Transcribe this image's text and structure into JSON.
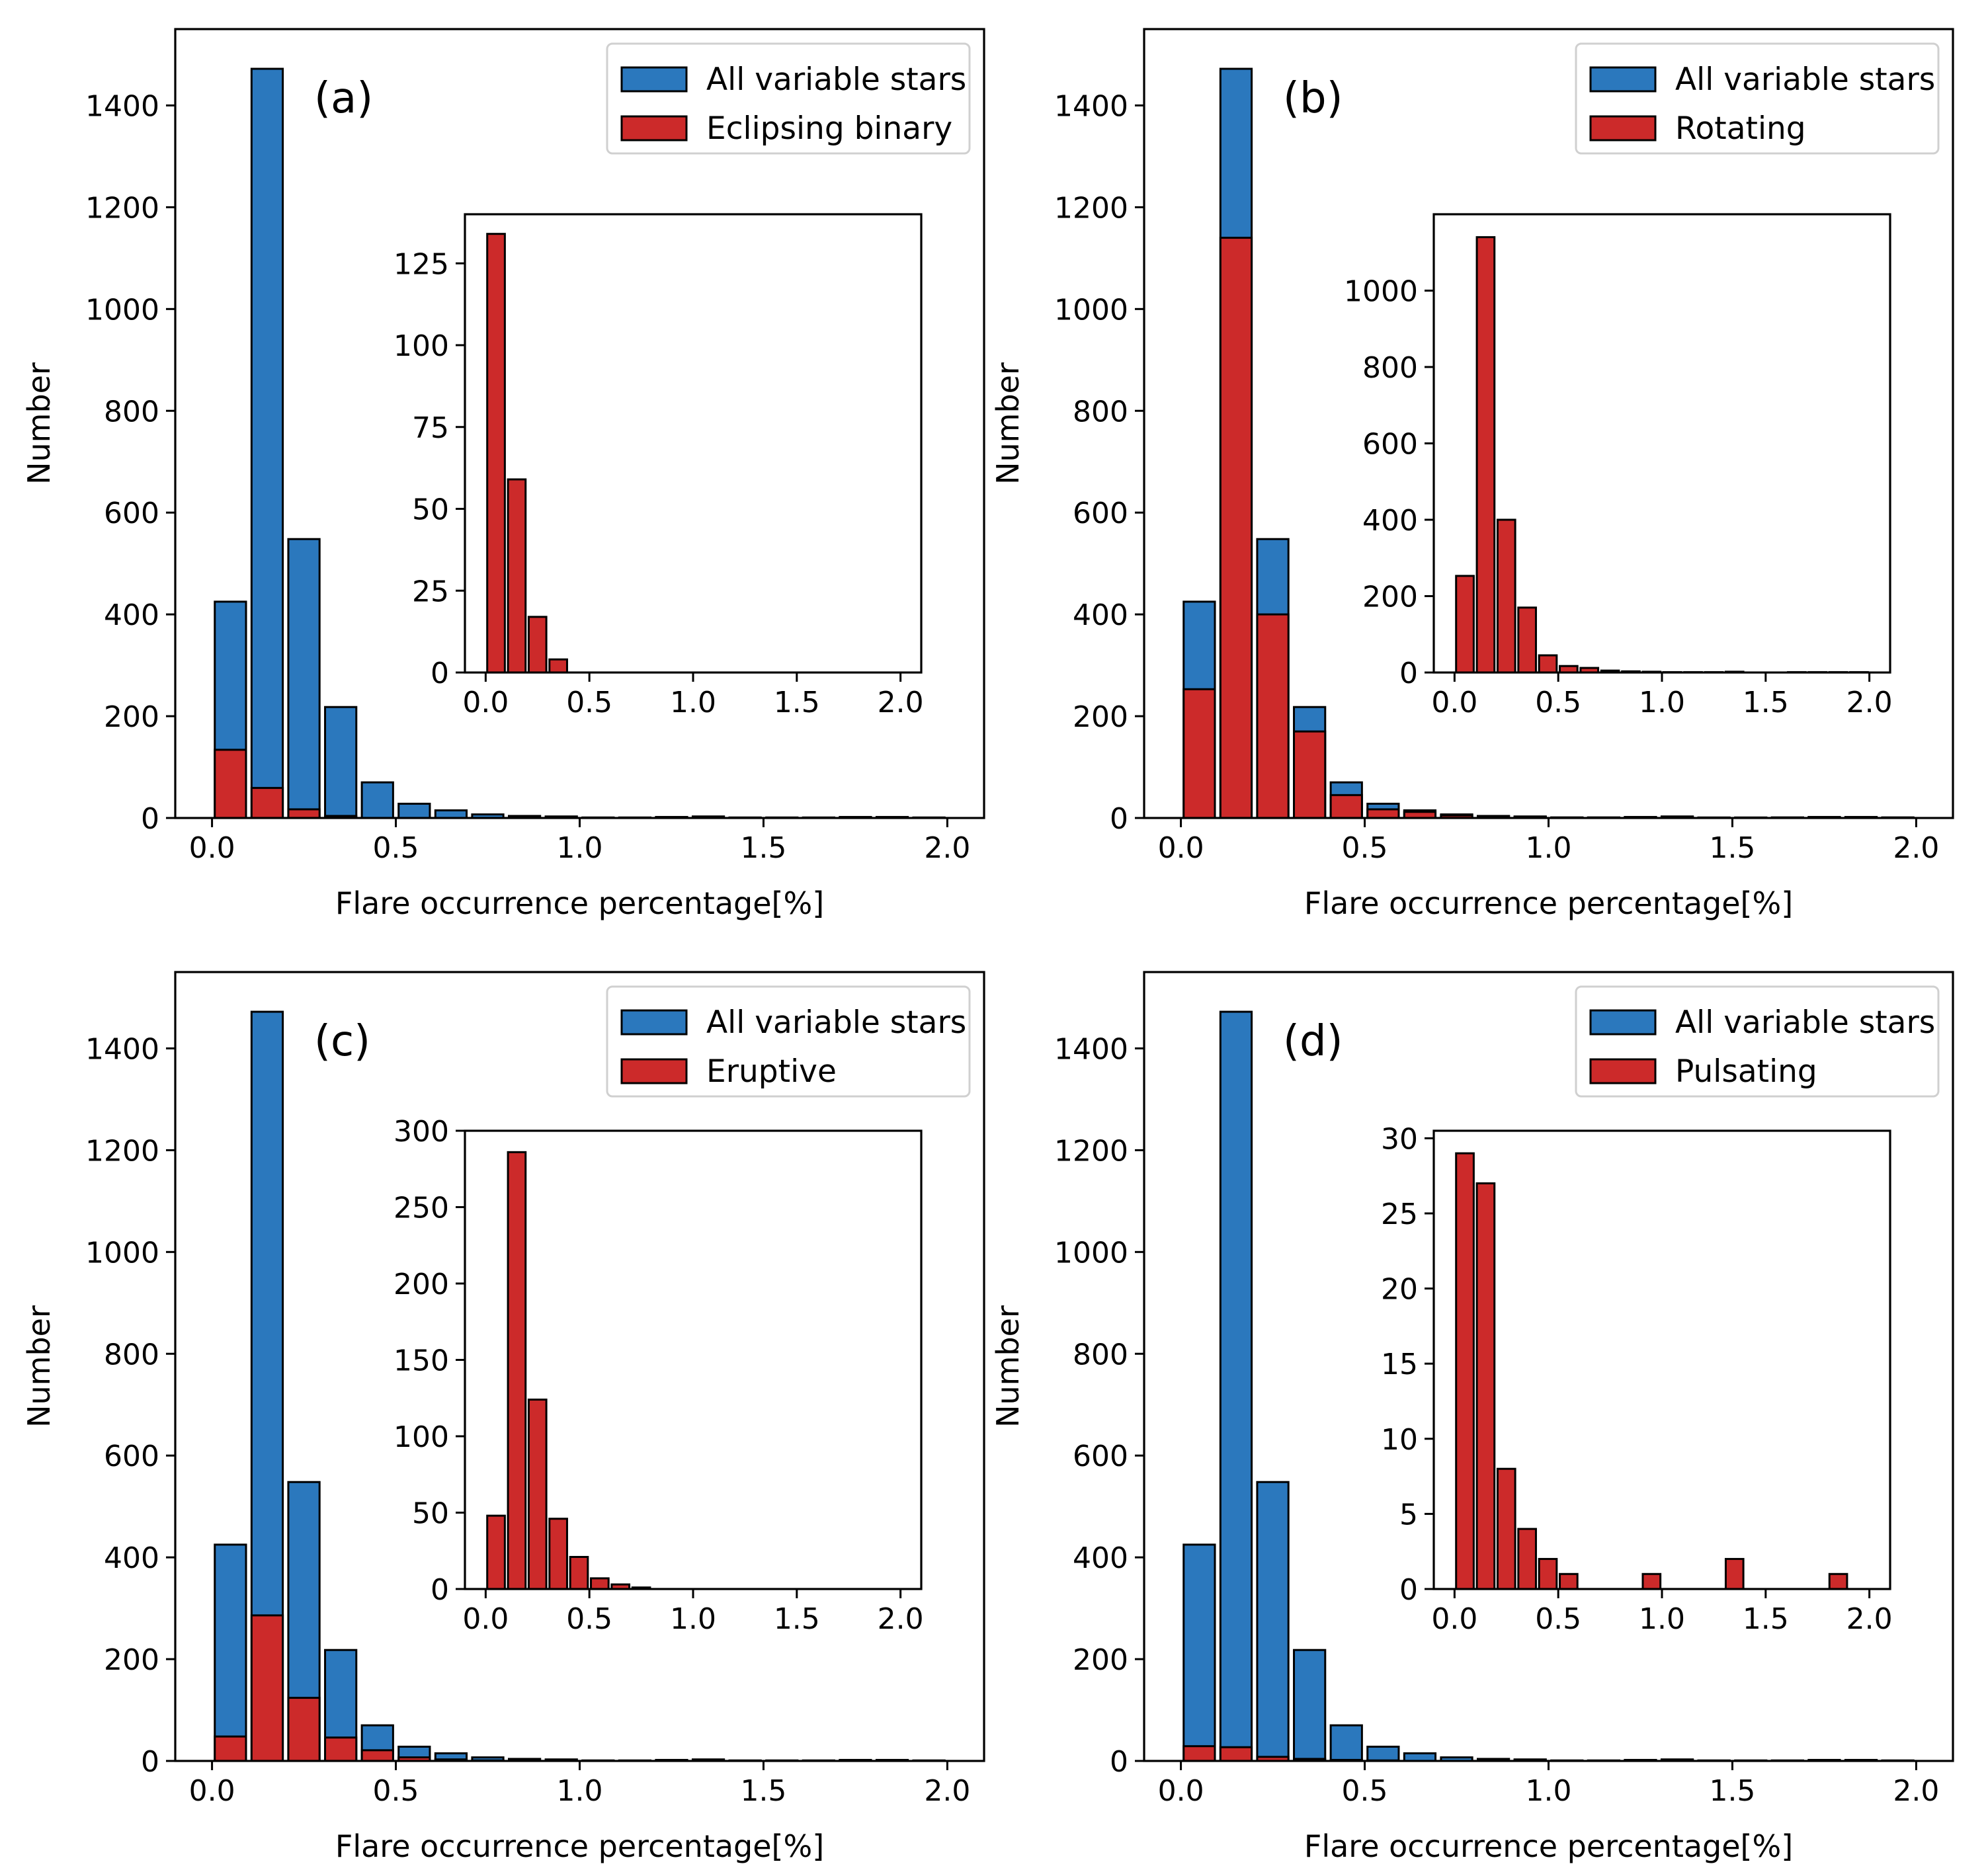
{
  "colors": {
    "all": "#2b78bd",
    "subset": "#cc2a2a",
    "edge": "#000000"
  },
  "chart_data": [
    {
      "type": "bar",
      "panel": "(a)",
      "xlabel": "Flare occurrence percentage[%]",
      "ylabel": "Number",
      "xlim": [
        -0.1,
        2.1
      ],
      "ylim": [
        0,
        1550
      ],
      "xticks": [
        0.0,
        0.5,
        1.0,
        1.5,
        2.0
      ],
      "xtick_labels": [
        "0.0",
        "0.5",
        "1.0",
        "1.5",
        "2.0"
      ],
      "yticks": [
        0,
        200,
        400,
        600,
        800,
        1000,
        1200,
        1400
      ],
      "ytick_labels": [
        "0",
        "200",
        "400",
        "600",
        "800",
        "1000",
        "1200",
        "1400"
      ],
      "legend_position": "top-right",
      "legend": [
        "All variable stars",
        "Eclipsing binary"
      ],
      "bin_centers": [
        0.05,
        0.15,
        0.25,
        0.35,
        0.45,
        0.55,
        0.65,
        0.75,
        0.85,
        0.95,
        1.05,
        1.15,
        1.25,
        1.35,
        1.45,
        1.55,
        1.65,
        1.75,
        1.85,
        1.95
      ],
      "series": [
        {
          "name": "All variable stars",
          "values": [
            425,
            1472,
            548,
            218,
            70,
            28,
            15,
            7,
            4,
            3,
            1,
            1,
            2,
            3,
            1,
            1,
            1,
            2,
            2,
            1
          ]
        },
        {
          "name": "Eclipsing binary",
          "values": [
            134,
            59,
            17,
            4,
            0,
            0,
            0,
            0,
            0,
            0,
            0,
            0,
            0,
            0,
            0,
            0,
            0,
            0,
            0,
            0
          ]
        }
      ],
      "inset": {
        "xlim": [
          -0.1,
          2.1
        ],
        "ylim": [
          0,
          140
        ],
        "xticks": [
          0.0,
          0.5,
          1.0,
          1.5,
          2.0
        ],
        "xtick_labels": [
          "0.0",
          "0.5",
          "1.0",
          "1.5",
          "2.0"
        ],
        "yticks": [
          0,
          25,
          50,
          75,
          100,
          125
        ],
        "ytick_labels": [
          "0",
          "25",
          "50",
          "75",
          "100",
          "125"
        ],
        "values": [
          134,
          59,
          17,
          4,
          0,
          0,
          0,
          0,
          0,
          0,
          0,
          0,
          0,
          0,
          0,
          0,
          0,
          0,
          0,
          0
        ]
      }
    },
    {
      "type": "bar",
      "panel": "(b)",
      "xlabel": "Flare occurrence percentage[%]",
      "ylabel": "Number",
      "xlim": [
        -0.1,
        2.1
      ],
      "ylim": [
        0,
        1550
      ],
      "xticks": [
        0.0,
        0.5,
        1.0,
        1.5,
        2.0
      ],
      "xtick_labels": [
        "0.0",
        "0.5",
        "1.0",
        "1.5",
        "2.0"
      ],
      "yticks": [
        0,
        200,
        400,
        600,
        800,
        1000,
        1200,
        1400
      ],
      "ytick_labels": [
        "0",
        "200",
        "400",
        "600",
        "800",
        "1000",
        "1200",
        "1400"
      ],
      "legend_position": "top-right",
      "legend": [
        "All variable stars",
        "Rotating"
      ],
      "bin_centers": [
        0.05,
        0.15,
        0.25,
        0.35,
        0.45,
        0.55,
        0.65,
        0.75,
        0.85,
        0.95,
        1.05,
        1.15,
        1.25,
        1.35,
        1.45,
        1.55,
        1.65,
        1.75,
        1.85,
        1.95
      ],
      "series": [
        {
          "name": "All variable stars",
          "values": [
            425,
            1472,
            548,
            218,
            70,
            28,
            15,
            7,
            4,
            3,
            1,
            1,
            2,
            3,
            1,
            1,
            1,
            2,
            2,
            1
          ]
        },
        {
          "name": "Rotating",
          "values": [
            253,
            1140,
            400,
            170,
            45,
            17,
            12,
            5,
            3,
            2,
            1,
            1,
            1,
            2,
            0,
            0,
            1,
            1,
            1,
            1
          ]
        }
      ],
      "inset": {
        "xlim": [
          -0.1,
          2.1
        ],
        "ylim": [
          0,
          1200
        ],
        "xticks": [
          0.0,
          0.5,
          1.0,
          1.5,
          2.0
        ],
        "xtick_labels": [
          "0.0",
          "0.5",
          "1.0",
          "1.5",
          "2.0"
        ],
        "yticks": [
          0,
          200,
          400,
          600,
          800,
          1000
        ],
        "ytick_labels": [
          "0",
          "200",
          "400",
          "600",
          "800",
          "1000"
        ],
        "values": [
          253,
          1140,
          400,
          170,
          45,
          17,
          12,
          5,
          3,
          2,
          1,
          1,
          1,
          2,
          0,
          0,
          1,
          1,
          1,
          1
        ]
      }
    },
    {
      "type": "bar",
      "panel": "(c)",
      "xlabel": "Flare occurrence percentage[%]",
      "ylabel": "Number",
      "xlim": [
        -0.1,
        2.1
      ],
      "ylim": [
        0,
        1550
      ],
      "xticks": [
        0.0,
        0.5,
        1.0,
        1.5,
        2.0
      ],
      "xtick_labels": [
        "0.0",
        "0.5",
        "1.0",
        "1.5",
        "2.0"
      ],
      "yticks": [
        0,
        200,
        400,
        600,
        800,
        1000,
        1200,
        1400
      ],
      "ytick_labels": [
        "0",
        "200",
        "400",
        "600",
        "800",
        "1000",
        "1200",
        "1400"
      ],
      "legend_position": "top-right",
      "legend": [
        "All variable stars",
        "Eruptive"
      ],
      "bin_centers": [
        0.05,
        0.15,
        0.25,
        0.35,
        0.45,
        0.55,
        0.65,
        0.75,
        0.85,
        0.95,
        1.05,
        1.15,
        1.25,
        1.35,
        1.45,
        1.55,
        1.65,
        1.75,
        1.85,
        1.95
      ],
      "series": [
        {
          "name": "All variable stars",
          "values": [
            425,
            1472,
            548,
            218,
            70,
            28,
            15,
            7,
            4,
            3,
            1,
            1,
            2,
            3,
            1,
            1,
            1,
            2,
            2,
            1
          ]
        },
        {
          "name": "Eruptive",
          "values": [
            48,
            286,
            124,
            46,
            21,
            7,
            3,
            1,
            0,
            0,
            0,
            0,
            0,
            0,
            0,
            0,
            0,
            0,
            0,
            0
          ]
        }
      ],
      "inset": {
        "xlim": [
          -0.1,
          2.1
        ],
        "ylim": [
          0,
          300
        ],
        "xticks": [
          0.0,
          0.5,
          1.0,
          1.5,
          2.0
        ],
        "xtick_labels": [
          "0.0",
          "0.5",
          "1.0",
          "1.5",
          "2.0"
        ],
        "yticks": [
          0,
          50,
          100,
          150,
          200,
          250,
          300
        ],
        "ytick_labels": [
          "0",
          "50",
          "100",
          "150",
          "200",
          "250",
          "300"
        ],
        "values": [
          48,
          286,
          124,
          46,
          21,
          7,
          3,
          1,
          0,
          0,
          0,
          0,
          0,
          0,
          0,
          0,
          0,
          0,
          0,
          0
        ]
      }
    },
    {
      "type": "bar",
      "panel": "(d)",
      "xlabel": "Flare occurrence percentage[%]",
      "ylabel": "Number",
      "xlim": [
        -0.1,
        2.1
      ],
      "ylim": [
        0,
        1550
      ],
      "xticks": [
        0.0,
        0.5,
        1.0,
        1.5,
        2.0
      ],
      "xtick_labels": [
        "0.0",
        "0.5",
        "1.0",
        "1.5",
        "2.0"
      ],
      "yticks": [
        0,
        200,
        400,
        600,
        800,
        1000,
        1200,
        1400
      ],
      "ytick_labels": [
        "0",
        "200",
        "400",
        "600",
        "800",
        "1000",
        "1200",
        "1400"
      ],
      "legend_position": "top-right",
      "legend": [
        "All variable stars",
        "Pulsating"
      ],
      "bin_centers": [
        0.05,
        0.15,
        0.25,
        0.35,
        0.45,
        0.55,
        0.65,
        0.75,
        0.85,
        0.95,
        1.05,
        1.15,
        1.25,
        1.35,
        1.45,
        1.55,
        1.65,
        1.75,
        1.85,
        1.95
      ],
      "series": [
        {
          "name": "All variable stars",
          "values": [
            425,
            1472,
            548,
            218,
            70,
            28,
            15,
            7,
            4,
            3,
            1,
            1,
            2,
            3,
            1,
            1,
            1,
            2,
            2,
            1
          ]
        },
        {
          "name": "Pulsating",
          "values": [
            29,
            27,
            8,
            4,
            2,
            1,
            0,
            0,
            0,
            1,
            0,
            0,
            0,
            2,
            0,
            0,
            0,
            0,
            1,
            0
          ]
        }
      ],
      "inset": {
        "xlim": [
          -0.1,
          2.1
        ],
        "ylim": [
          0,
          30.5
        ],
        "xticks": [
          0.0,
          0.5,
          1.0,
          1.5,
          2.0
        ],
        "xtick_labels": [
          "0.0",
          "0.5",
          "1.0",
          "1.5",
          "2.0"
        ],
        "yticks": [
          0,
          5,
          10,
          15,
          20,
          25,
          30
        ],
        "ytick_labels": [
          "0",
          "5",
          "10",
          "15",
          "20",
          "25",
          "30"
        ],
        "values": [
          29,
          27,
          8,
          4,
          2,
          1,
          0,
          0,
          0,
          1,
          0,
          0,
          0,
          2,
          0,
          0,
          0,
          0,
          1,
          0
        ]
      }
    }
  ]
}
